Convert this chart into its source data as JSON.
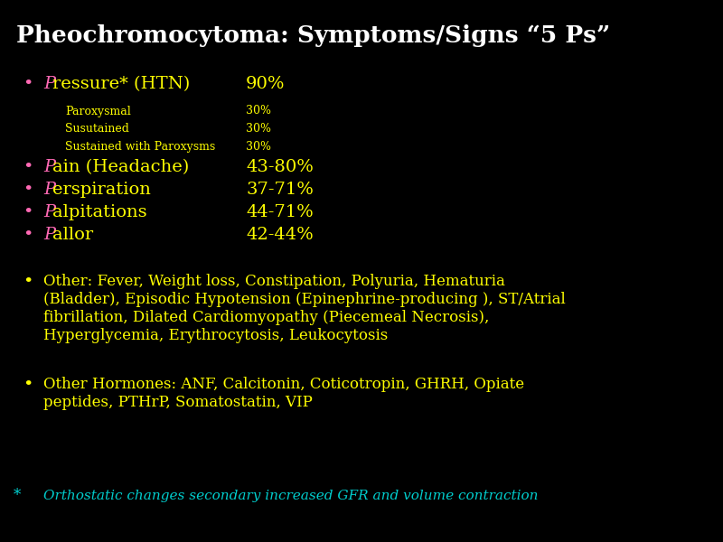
{
  "title": "Pheochromocytoma: Symptoms/Signs “5 Ps”",
  "background_color": "#000000",
  "title_color": "#ffffff",
  "yellow": "#ffff00",
  "pink": "#ff69b4",
  "cyan": "#00cdcd",
  "sub_items": [
    {
      "label": "Paroxysmal",
      "value": "30%"
    },
    {
      "label": "Susutained",
      "value": "30%"
    },
    {
      "label": "Sustained with Paroxysms",
      "value": "30%"
    }
  ],
  "other_text_line1": "Other: Fever, Weight loss, Constipation, Polyuria, Hematuria",
  "other_text_line2": "(Bladder), Episodic Hypotension (Epinephrine-producing ), ST/Atrial",
  "other_text_line3": "fibrillation, Dilated Cardiomyopathy (Piecemeal Necrosis),",
  "other_text_line4": "Hyperglycemia, Erythrocytosis, Leukocytosis",
  "hormones_line1": "Other Hormones: ANF, Calcitonin, Coticotropin, GHRH, Opiate",
  "hormones_line2": "peptides, PTHrP, Somatostatin, VIP",
  "footnote_text": "Orthostatic changes secondary increased GFR and volume contraction"
}
